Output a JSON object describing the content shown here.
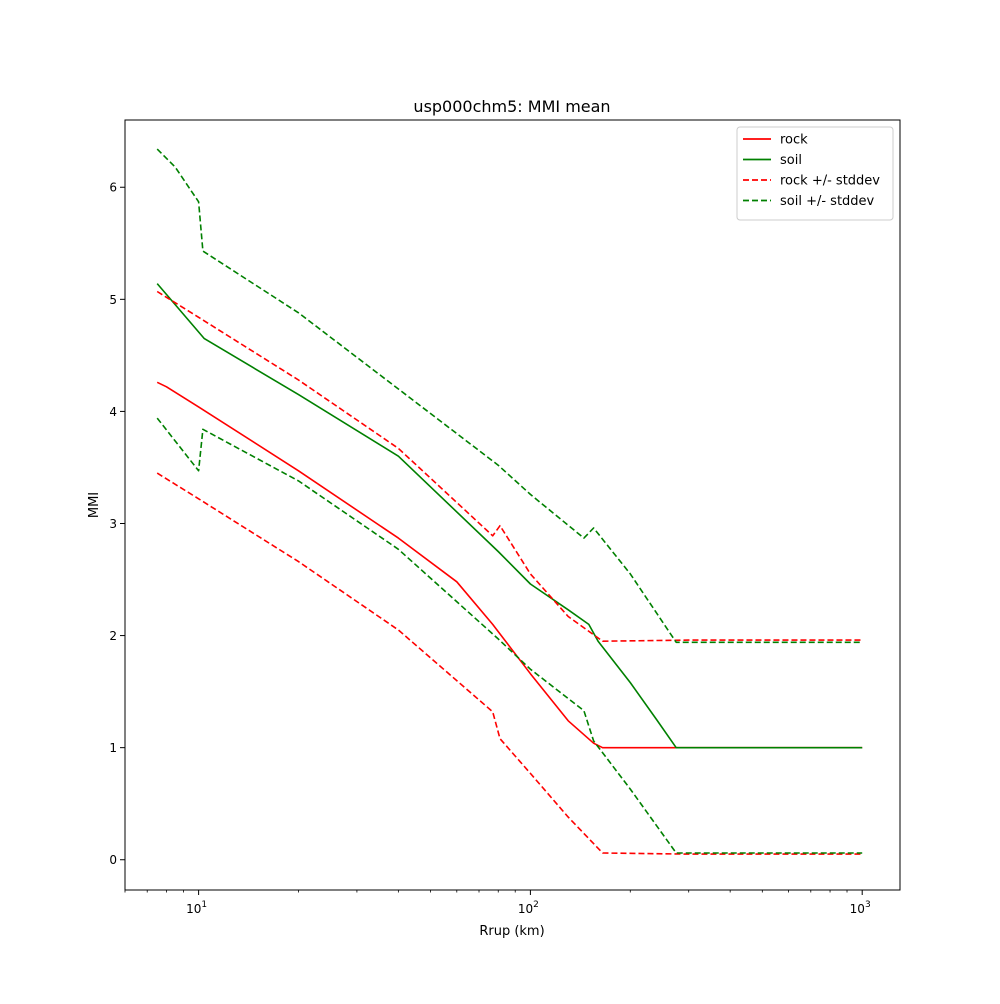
{
  "chart_data": {
    "type": "line",
    "title": "usp000chm5: MMI mean",
    "xlabel": "Rrup (km)",
    "ylabel": "MMI",
    "xscale": "log",
    "xlim": [
      6.0,
      1300.0
    ],
    "ylim": [
      -0.27,
      6.6
    ],
    "grid": false,
    "legend_position": "top-right",
    "x_ticks": [
      {
        "value": 10,
        "base": "10",
        "exp": "1"
      },
      {
        "value": 100,
        "base": "10",
        "exp": "2"
      },
      {
        "value": 1000,
        "base": "10",
        "exp": "3"
      }
    ],
    "y_ticks": [
      0,
      1,
      2,
      3,
      4,
      5,
      6
    ],
    "series": [
      {
        "name": "rock",
        "color": "#ff0000",
        "style": "solid",
        "x": [
          7.5,
          8,
          10,
          20,
          40,
          60,
          77,
          100,
          130,
          155,
          165,
          200,
          300,
          500,
          1000
        ],
        "y": [
          4.26,
          4.22,
          4.04,
          3.47,
          2.87,
          2.48,
          2.1,
          1.66,
          1.24,
          1.04,
          1.0,
          1.0,
          1.0,
          1.0,
          1.0
        ]
      },
      {
        "name": "soil",
        "color": "#008000",
        "style": "solid",
        "x": [
          7.5,
          10.4,
          20,
          40,
          80,
          100,
          130,
          150,
          160,
          200,
          240,
          275,
          300,
          500,
          1000
        ],
        "y": [
          5.14,
          4.65,
          4.15,
          3.6,
          2.75,
          2.46,
          2.23,
          2.1,
          1.95,
          1.58,
          1.25,
          1.0,
          1.0,
          1.0,
          1.0
        ]
      },
      {
        "name": "rock +/- stddev",
        "color": "#ff0000",
        "style": "dashed",
        "x": [
          7.5,
          10,
          20,
          40,
          77,
          81,
          100,
          130,
          165,
          300,
          1000
        ],
        "y": [
          5.07,
          4.84,
          4.28,
          3.67,
          2.89,
          2.98,
          2.55,
          2.17,
          1.95,
          1.96,
          1.96
        ]
      },
      {
        "name": "",
        "color": "#ff0000",
        "style": "dashed",
        "x": [
          7.5,
          10,
          20,
          40,
          77,
          81,
          100,
          130,
          165,
          300,
          1000
        ],
        "y": [
          3.45,
          3.22,
          2.66,
          2.05,
          1.32,
          1.08,
          0.77,
          0.38,
          0.06,
          0.05,
          0.05
        ]
      },
      {
        "name": "soil +/- stddev",
        "color": "#008000",
        "style": "dashed",
        "x": [
          7.5,
          8.5,
          10,
          10.3,
          20,
          40,
          80,
          100,
          145,
          155,
          200,
          275,
          1000
        ],
        "y": [
          6.34,
          6.18,
          5.87,
          5.43,
          4.88,
          4.2,
          3.52,
          3.26,
          2.87,
          2.96,
          2.55,
          1.94,
          1.94
        ]
      },
      {
        "name": "",
        "color": "#008000",
        "style": "dashed",
        "x": [
          7.5,
          10,
          10.3,
          20,
          40,
          80,
          100,
          145,
          155,
          200,
          275,
          1000
        ],
        "y": [
          3.94,
          3.47,
          3.84,
          3.38,
          2.77,
          1.97,
          1.7,
          1.33,
          1.06,
          0.63,
          0.06,
          0.06
        ]
      }
    ]
  }
}
